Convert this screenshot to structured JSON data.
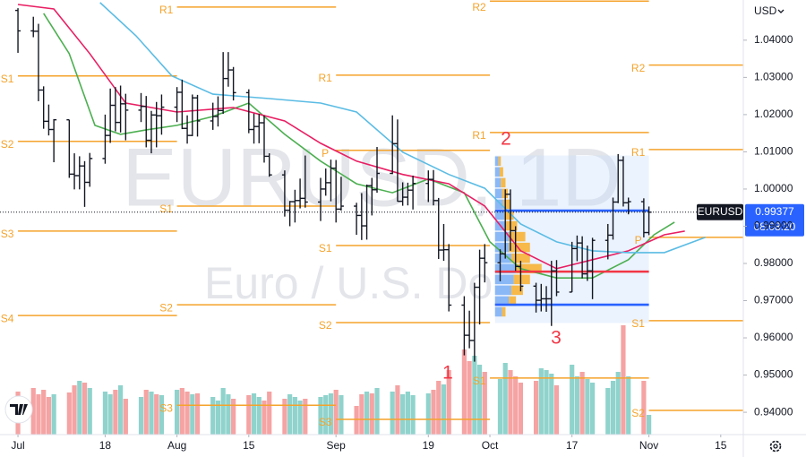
{
  "chart_data": {
    "type": "ohlc",
    "title": "EURUSD, 1D",
    "subtitle": "Euro / U.S. Do",
    "symbol": "EURUSD",
    "currency": "USD",
    "countdown": "08:08:20",
    "bar_color": "#131722",
    "volume_up_color": "#8fd3cc",
    "volume_down_color": "#f5a3a3",
    "x": [
      0,
      3,
      4,
      5,
      6,
      7,
      10,
      11,
      12,
      13,
      14,
      17,
      18,
      19,
      20,
      21,
      24,
      25,
      26,
      27,
      28,
      31,
      32,
      33,
      34,
      35,
      38,
      39,
      40,
      41,
      42,
      45,
      46,
      47,
      48,
      49,
      52,
      53,
      54,
      55,
      56,
      59,
      60,
      61,
      62,
      63,
      66,
      67,
      68,
      69,
      70,
      73,
      74,
      75,
      76,
      77,
      80,
      81,
      82,
      83,
      84,
      87,
      88,
      89,
      90,
      91,
      94,
      95,
      96,
      97,
      98,
      101,
      102,
      103,
      104,
      105,
      108,
      109,
      110,
      111,
      112,
      115,
      116,
      117,
      118,
      119,
      122,
      123
    ],
    "open": [
      1.048,
      1.0425,
      1.0424,
      1.0266,
      1.0182,
      1.016,
      1.0186,
      1.004,
      1.0036,
      1.0062,
      1.0018,
      1.0082,
      1.0144,
      1.0225,
      1.0179,
      1.0229,
      1.0212,
      1.0222,
      1.0131,
      1.0199,
      1.0197,
      1.022,
      1.026,
      1.0163,
      1.0144,
      1.0245,
      1.0183,
      1.0195,
      1.0211,
      1.0297,
      1.032,
      1.0259,
      1.016,
      1.0168,
      1.0178,
      1.0088,
      1.0038,
      0.9943,
      0.9966,
      0.9969,
      0.9975,
      0.9965,
      1.0,
      1.0017,
      1.0056,
      0.9946,
      0.9954,
      0.9929,
      0.9901,
      1.0009,
      0.9998,
      1.0042,
      1.0122,
      0.9967,
      0.9978,
      0.9997,
      1.0015,
      1.0026,
      0.9969,
      0.9836,
      0.9837,
      0.9688,
      0.9607,
      0.9593,
      0.9736,
      0.9814,
      0.9802,
      0.9826,
      0.9986,
      0.9888,
      0.9792,
      0.9739,
      0.9701,
      0.9705,
      0.9705,
      0.978,
      0.9723,
      0.984,
      0.9855,
      0.9772,
      0.978,
      0.9862,
      0.9876,
      0.9965,
      1.0077,
      0.9963,
      0.9966,
      0.9883
    ],
    "high": [
      1.0486,
      1.0463,
      1.0444,
      1.0276,
      1.0227,
      1.0188,
      1.0186,
      1.0096,
      1.0088,
      1.0075,
      1.0097,
      1.02,
      1.027,
      1.0274,
      1.0278,
      1.0256,
      1.0258,
      1.025,
      1.021,
      1.0234,
      1.0254,
      1.0274,
      1.0294,
      1.0198,
      1.0254,
      1.0253,
      1.0232,
      1.0249,
      1.0368,
      1.0368,
      1.0328,
      1.0268,
      1.0203,
      1.0202,
      1.0198,
      1.0096,
      1.005,
      0.9968,
      0.9998,
      1.0028,
      1.009,
      1.003,
      1.0055,
      1.0079,
      1.0078,
      1.0033,
      0.9963,
      0.9989,
      1.0012,
      1.003,
      1.0113,
      1.0198,
      1.0187,
      1.0018,
      1.0017,
      1.0036,
      1.005,
      1.0051,
      0.9976,
      0.9906,
      0.9852,
      0.9712,
      0.9673,
      0.9748,
      0.9837,
      0.9852,
      0.9838,
      0.9999,
      0.9999,
      0.99,
      0.9807,
      0.9748,
      0.9745,
      0.9739,
      0.9807,
      0.9809,
      0.9858,
      0.9875,
      0.9873,
      0.9848,
      0.9869,
      0.9906,
      0.9977,
      1.0094,
      1.0088,
      0.9977,
      0.9975,
      0.9953
    ],
    "low": [
      1.0366,
      1.0408,
      1.0236,
      1.0162,
      1.0144,
      1.0072,
      1.003,
      0.9999,
      0.9999,
      0.9952,
      1.0006,
      1.0068,
      1.0124,
      1.0155,
      1.0152,
      1.0131,
      1.018,
      1.0112,
      1.0096,
      1.0112,
      1.0146,
      1.018,
      1.0161,
      1.0122,
      1.0142,
      1.0141,
      1.0159,
      1.0168,
      1.0202,
      1.0275,
      1.0238,
      1.015,
      1.0122,
      1.0123,
      1.0071,
      1.0033,
      0.9926,
      0.99,
      0.991,
      0.9948,
      0.995,
      0.9914,
      0.9982,
      0.9967,
      0.991,
      0.9942,
      0.9877,
      0.9863,
      0.9864,
      0.9929,
      0.999,
      1.004,
      0.9966,
      0.9955,
      0.9956,
      0.9945,
      0.9965,
      0.9956,
      0.9812,
      0.9807,
      0.9671,
      0.9553,
      0.9572,
      0.9536,
      0.9636,
      0.9749,
      0.9752,
      0.9813,
      0.9834,
      0.978,
      0.9725,
      0.9668,
      0.9671,
      0.967,
      0.9632,
      0.9712,
      0.9723,
      0.9806,
      0.976,
      0.9753,
      0.9704,
      0.9811,
      0.9864,
      0.9962,
      0.9953,
      0.9932,
      0.987,
      0.9876
    ],
    "close": [
      1.0425,
      1.0424,
      1.0266,
      1.0182,
      1.016,
      1.0186,
      1.004,
      1.0036,
      1.0062,
      1.0018,
      1.0082,
      1.0144,
      1.0225,
      1.0179,
      1.0229,
      1.0212,
      1.0222,
      1.0131,
      1.0199,
      1.0197,
      1.022,
      1.026,
      1.0163,
      1.0144,
      1.0245,
      1.0183,
      1.0195,
      1.0211,
      1.0297,
      1.032,
      1.0259,
      1.016,
      1.0168,
      1.0178,
      1.0088,
      1.0038,
      0.9943,
      0.9966,
      0.9969,
      0.9975,
      0.9965,
      1.0,
      1.0017,
      1.0056,
      0.9946,
      0.9954,
      0.9929,
      0.9901,
      1.0009,
      0.9998,
      1.0042,
      1.0122,
      0.9967,
      0.9978,
      0.9997,
      1.0015,
      1.0026,
      0.9969,
      0.9836,
      0.9837,
      0.9688,
      0.9607,
      0.9593,
      0.9736,
      0.9814,
      0.9802,
      0.9826,
      0.9986,
      0.9888,
      0.9792,
      0.9739,
      0.9701,
      0.9705,
      0.9705,
      0.978,
      0.9723,
      0.984,
      0.9855,
      0.9772,
      0.978,
      0.9862,
      0.9876,
      0.9965,
      1.0077,
      0.9963,
      0.9966,
      0.9883,
      0.99377
    ],
    "volume": [
      48,
      52,
      45,
      50,
      42,
      45,
      47,
      55,
      60,
      58,
      52,
      48,
      45,
      50,
      55,
      40,
      42,
      50,
      48,
      45,
      44,
      50,
      52,
      48,
      45,
      46,
      42,
      38,
      52,
      45,
      40,
      44,
      46,
      42,
      38,
      48,
      40,
      45,
      42,
      38,
      40,
      42,
      44,
      46,
      50,
      44,
      32,
      45,
      48,
      46,
      52,
      48,
      55,
      45,
      48,
      44,
      46,
      50,
      60,
      56,
      72,
      95,
      82,
      88,
      78,
      70,
      62,
      80,
      72,
      65,
      58,
      60,
      74,
      72,
      68,
      55,
      78,
      65,
      70,
      62,
      58,
      52,
      60,
      70,
      122,
      65,
      60,
      22
    ],
    "moving_averages": [
      {
        "color": "#4caf50",
        "x": [
          5,
          10,
          15,
          20,
          25,
          31,
          38,
          45,
          52,
          59,
          66,
          73,
          80,
          87,
          92,
          98,
          105,
          112,
          119,
          124,
          128
        ],
        "values": [
          1.0472,
          1.0364,
          1.0171,
          1.0147,
          1.0159,
          1.0171,
          1.0195,
          1.0231,
          1.0147,
          1.0075,
          1.0014,
          0.999,
          1.0027,
          0.999,
          0.9858,
          0.9786,
          0.9761,
          0.9761,
          0.981,
          0.9877,
          0.9911
        ]
      },
      {
        "color": "#e91e63",
        "x": [
          0,
          7,
          14,
          21,
          31,
          42,
          52,
          59,
          66,
          75,
          84,
          91,
          98,
          105,
          112,
          119,
          126,
          130
        ],
        "values": [
          1.0496,
          1.0484,
          1.0364,
          1.0231,
          1.0207,
          1.0219,
          1.0183,
          1.0123,
          1.0075,
          1.0039,
          1.0014,
          0.9954,
          0.9834,
          0.9786,
          0.981,
          0.9834,
          0.9877,
          0.9887
        ]
      },
      {
        "color": "#5bbce4",
        "x": [
          16,
          23,
          30,
          38,
          49,
          59,
          66,
          75,
          84,
          91,
          98,
          105,
          112,
          119,
          126,
          134
        ],
        "values": [
          1.0501,
          1.0412,
          1.0304,
          1.0255,
          1.0243,
          1.0231,
          1.0207,
          1.0099,
          1.0039,
          1.0002,
          0.9906,
          0.9858,
          0.9834,
          0.9829,
          0.9829,
          0.987
        ]
      }
    ],
    "pivot_color": "#f5a32b",
    "pivots": [
      {
        "label": "S1",
        "value": 1.0304,
        "x": [
          0,
          31
        ]
      },
      {
        "label": "S2",
        "value": 1.0128,
        "x": [
          0,
          31
        ]
      },
      {
        "label": "S3",
        "value": 0.9887,
        "x": [
          0,
          31
        ]
      },
      {
        "label": "S4",
        "value": 0.966,
        "x": [
          0,
          31
        ]
      },
      {
        "label": "R1",
        "value": 1.0489,
        "x": [
          31,
          62
        ]
      },
      {
        "label": "S1",
        "value": 0.9954,
        "x": [
          31,
          62
        ]
      },
      {
        "label": "S2",
        "value": 0.9689,
        "x": [
          31,
          62
        ]
      },
      {
        "label": "S3",
        "value": 0.9419,
        "x": [
          31,
          62
        ]
      },
      {
        "label": "R1",
        "value": 1.0306,
        "x": [
          62,
          92
        ]
      },
      {
        "label": "P",
        "value": 1.0104,
        "x": [
          62,
          92
        ]
      },
      {
        "label": "S1",
        "value": 0.9848,
        "x": [
          62,
          92
        ]
      },
      {
        "label": "S2",
        "value": 0.9641,
        "x": [
          62,
          92
        ]
      },
      {
        "label": "S3",
        "value": 0.9381,
        "x": [
          62,
          92
        ]
      },
      {
        "label": "R2",
        "value": 1.0505,
        "x": [
          92,
          123
        ]
      },
      {
        "label": "R1",
        "value": 1.0152,
        "x": [
          92,
          123
        ]
      },
      {
        "label": "S1",
        "value": 0.9492,
        "x": [
          92,
          123
        ]
      },
      {
        "label": "R2",
        "value": 1.0333,
        "x": [
          123,
          141.4
        ]
      },
      {
        "label": "R1",
        "value": 1.0106,
        "x": [
          123,
          141.4
        ]
      },
      {
        "label": "P",
        "value": 0.987,
        "x": [
          123,
          141.4
        ]
      },
      {
        "label": "S1",
        "value": 0.9646,
        "x": [
          123,
          141.4
        ]
      },
      {
        "label": "S2",
        "value": 0.9405,
        "x": [
          123,
          141.4
        ]
      }
    ],
    "volume_profile": {
      "x": [
        93,
        123
      ],
      "range": [
        0.964,
        1.009
      ],
      "up_color": "#8ab8f6",
      "down_color": "#f6b94a",
      "levels": [
        1.0075,
        1.0046,
        1.0017,
        0.9988,
        0.9959,
        0.993,
        0.9901,
        0.9872,
        0.9843,
        0.9814,
        0.9786,
        0.9757,
        0.9728,
        0.9699,
        0.967
      ],
      "up": [
        3,
        4,
        5,
        6,
        7,
        8,
        9,
        12,
        12,
        14,
        18,
        16,
        14,
        12,
        6
      ],
      "down": [
        2,
        3,
        4,
        5,
        6,
        8,
        10,
        14,
        18,
        16,
        22,
        14,
        10,
        6,
        3
      ],
      "value_area_high": 0.9942,
      "poc": 0.9778,
      "value_area_low": 0.9689
    },
    "annotations": [
      "1",
      "2",
      "3"
    ],
    "xlim": [
      -3.5,
      141.4
    ],
    "xticks": [
      {
        "value": 0,
        "label": "Jul"
      },
      {
        "value": 17,
        "label": "18"
      },
      {
        "value": 31,
        "label": "Aug"
      },
      {
        "value": 45,
        "label": "15"
      },
      {
        "value": 62,
        "label": "Sep"
      },
      {
        "value": 80,
        "label": "19"
      },
      {
        "value": 92,
        "label": "Oct"
      },
      {
        "value": 108,
        "label": "17"
      },
      {
        "value": 123,
        "label": "Nov"
      },
      {
        "value": 137,
        "label": "15"
      }
    ],
    "ylim": [
      0.934,
      1.0508
    ],
    "yticks": [
      {
        "value": 1.04,
        "label": "1.04000"
      },
      {
        "value": 1.03,
        "label": "1.03000"
      },
      {
        "value": 1.02,
        "label": "1.02000"
      },
      {
        "value": 1.01,
        "label": "1.01000"
      },
      {
        "value": 1.0,
        "label": "1.00000"
      },
      {
        "value": 0.99,
        "label": "0.99000"
      },
      {
        "value": 0.98,
        "label": "0.98000"
      },
      {
        "value": 0.97,
        "label": "0.97000"
      },
      {
        "value": 0.96,
        "label": "0.96000"
      },
      {
        "value": 0.95,
        "label": "0.95000"
      },
      {
        "value": 0.94,
        "label": "0.94000"
      }
    ],
    "grid": false
  }
}
